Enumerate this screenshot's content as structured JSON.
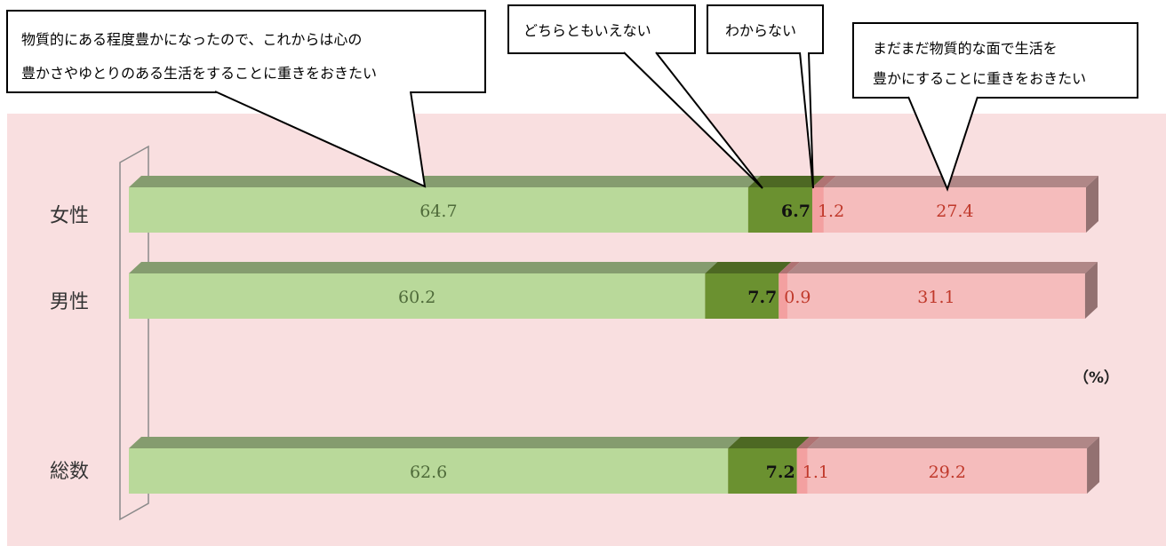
{
  "chart_data": {
    "type": "bar",
    "orientation": "horizontal",
    "stacked": true,
    "normalized_percent": true,
    "unit": "（%）",
    "categories": [
      "女性",
      "男性",
      "総数"
    ],
    "series": [
      {
        "name": "物質的にある程度豊かになったので、これからは心の豊かさやゆとりのある生活をすることに重きをおきたい",
        "color": "#b9d99a",
        "label_color": "#4f6b3a",
        "values": [
          64.7,
          60.2,
          62.6
        ]
      },
      {
        "name": "どちらともいえない",
        "color": "#6b9130",
        "label_color": "#111111",
        "label_bold": true,
        "values": [
          6.7,
          7.7,
          7.2
        ]
      },
      {
        "name": "わからない",
        "color": "#f3a0a0",
        "label_color": "#c0392b",
        "values": [
          1.2,
          0.9,
          1.1
        ]
      },
      {
        "name": "まだまだ物質的な面で生活を豊かにすることに重きをおきたい",
        "color": "#f5bcbc",
        "label_color": "#c0392b",
        "values": [
          27.4,
          31.1,
          29.2
        ]
      }
    ],
    "value_labels": [
      [
        "64.7",
        "6.7",
        "1.2",
        "27.4"
      ],
      [
        "60.2",
        "7.7",
        "0.9",
        "31.1"
      ],
      [
        "62.6",
        "7.2",
        "1.1",
        "29.2"
      ]
    ],
    "callouts": [
      {
        "lines": [
          "物質的にある程度豊かになったので、これからは心の",
          "豊かさやゆとりのある生活をすることに重きをおきたい"
        ]
      },
      {
        "lines": [
          "どちらともいえない"
        ]
      },
      {
        "lines": [
          "わからない"
        ]
      },
      {
        "lines": [
          "まだまだ物質的な面で生活を",
          "豊かにすることに重きをおきたい"
        ]
      }
    ],
    "legend": "callouts-top",
    "grid": false,
    "xlim": [
      0,
      100
    ],
    "colors": {
      "plot_background": "#f9dfe0",
      "top_face_shade": 0.72,
      "side_face_shade": 0.6
    }
  }
}
